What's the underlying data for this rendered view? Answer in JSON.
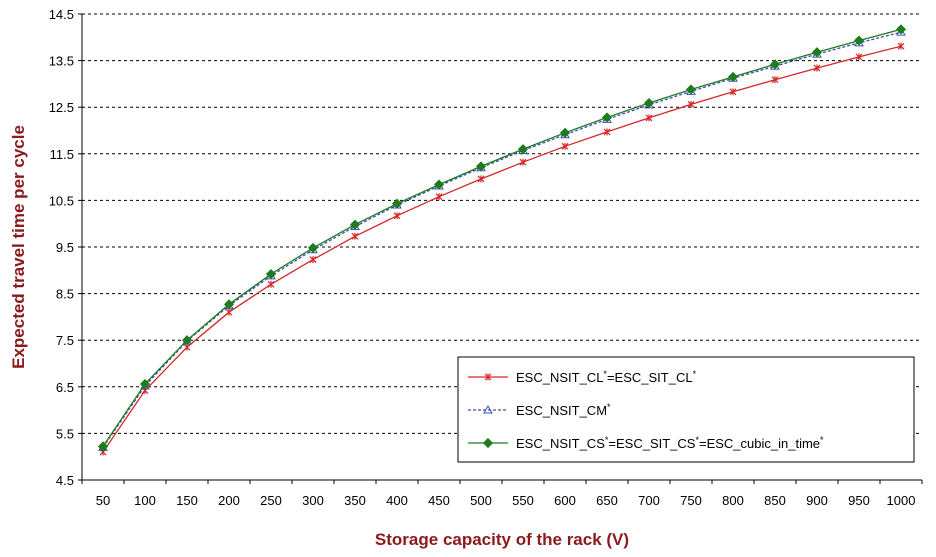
{
  "chart_data": {
    "type": "line",
    "xlabel": "Storage capacity of the rack (V)",
    "ylabel": "Expected travel time per cycle",
    "ylim": [
      4.5,
      14.5
    ],
    "yticks": [
      4.5,
      5.5,
      6.5,
      7.5,
      8.5,
      9.5,
      10.5,
      11.5,
      12.5,
      13.5,
      14.5
    ],
    "ytick_labels": [
      "4.5",
      "5.5",
      "6.5",
      "7.5",
      "8.5",
      "9.5",
      "10.5",
      "11.5",
      "12.5",
      "13.5",
      "14.5"
    ],
    "x": [
      50,
      100,
      150,
      200,
      250,
      300,
      350,
      400,
      450,
      500,
      550,
      600,
      650,
      700,
      750,
      800,
      850,
      900,
      950,
      1000
    ],
    "x_labels": [
      "50",
      "100",
      "150",
      "200",
      "250",
      "300",
      "350",
      "400",
      "450",
      "500",
      "550",
      "600",
      "650",
      "700",
      "750",
      "800",
      "850",
      "900",
      "950",
      "1000"
    ],
    "grid": "horizontal dashed",
    "legend_position": "lower-right inside plot",
    "series": [
      {
        "name": "ESC_NSIT_CL",
        "legend": {
          "a": "ESC_NSIT_CL",
          "b": "*",
          "c": "=ESC_SIT_CL",
          "d": "*"
        },
        "color": "#d62728",
        "marker": "x",
        "line": "solid",
        "values": [
          5.1,
          6.42,
          7.35,
          8.1,
          8.7,
          9.23,
          9.73,
          10.17,
          10.58,
          10.96,
          11.32,
          11.66,
          11.97,
          12.27,
          12.56,
          12.83,
          13.09,
          13.34,
          13.58,
          13.81
        ]
      },
      {
        "name": "ESC_NSIT_CM",
        "legend": {
          "a": "ESC_NSIT_CM",
          "b": "*"
        },
        "color": "#3b4fb8",
        "marker": "triangle",
        "line": "dashed",
        "values": [
          5.2,
          6.52,
          7.48,
          8.24,
          8.88,
          9.44,
          9.94,
          10.4,
          10.81,
          11.2,
          11.57,
          11.91,
          12.24,
          12.55,
          12.84,
          13.12,
          13.38,
          13.64,
          13.88,
          14.11
        ]
      },
      {
        "name": "ESC_NSIT_CS",
        "legend": {
          "a": "ESC_NSIT_CS",
          "b": "*",
          "c": "=ESC_SIT_CS",
          "d": "*",
          "e": "=ESC_cubic_in_time",
          "f": "*"
        },
        "color": "#1e7b1e",
        "marker": "diamond",
        "line": "solid",
        "values": [
          5.22,
          6.56,
          7.5,
          8.27,
          8.92,
          9.48,
          9.98,
          10.43,
          10.84,
          11.23,
          11.6,
          11.95,
          12.28,
          12.59,
          12.88,
          13.15,
          13.42,
          13.68,
          13.93,
          14.17
        ]
      }
    ]
  }
}
